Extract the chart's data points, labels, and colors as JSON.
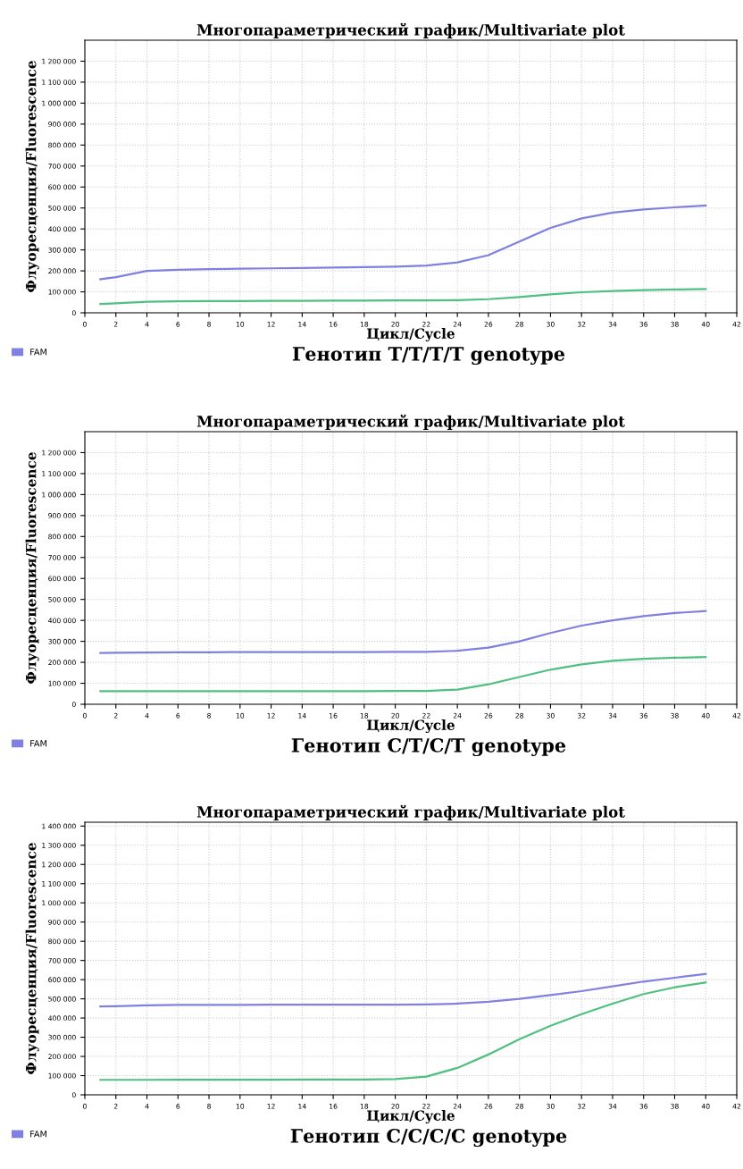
{
  "chart_data": [
    {
      "type": "line",
      "title": "Многопараметрический график/Multivariate plot",
      "xlabel": "Цикл/Cycle",
      "ylabel": "Флуоресценция/Fluorescence",
      "x": [
        1,
        2,
        4,
        6,
        8,
        10,
        12,
        14,
        16,
        18,
        20,
        22,
        24,
        26,
        28,
        30,
        32,
        34,
        36,
        38,
        40
      ],
      "series": [
        {
          "name": "FAM",
          "color": "#8080e0",
          "values": [
            160000,
            170000,
            200000,
            205000,
            208000,
            210000,
            212000,
            214000,
            216000,
            218000,
            220000,
            225000,
            240000,
            275000,
            340000,
            405000,
            450000,
            478000,
            493000,
            503000,
            512000
          ]
        },
        {
          "color": "#50c080",
          "values": [
            42000,
            45000,
            53000,
            55000,
            56000,
            56000,
            57000,
            57000,
            58000,
            58000,
            59000,
            59000,
            60000,
            65000,
            75000,
            88000,
            98000,
            104000,
            108000,
            111000,
            113000
          ]
        }
      ],
      "xlim": [
        0,
        42
      ],
      "xticks": [
        0,
        2,
        4,
        6,
        8,
        10,
        12,
        14,
        16,
        18,
        20,
        22,
        24,
        26,
        28,
        30,
        32,
        34,
        36,
        38,
        40,
        42
      ],
      "ylim": [
        0,
        1300000
      ],
      "yticks": [
        0,
        {
          "value": 100000,
          "label": "100 000"
        },
        {
          "value": 200000,
          "label": "200 000"
        },
        {
          "value": 300000,
          "label": "300 000"
        },
        {
          "value": 400000,
          "label": "400 000"
        },
        {
          "value": 500000,
          "label": "500 000"
        },
        {
          "value": 600000,
          "label": "600 000"
        },
        {
          "value": 700000,
          "label": "700 000"
        },
        {
          "value": 800000,
          "label": "800 000"
        },
        {
          "value": 900000,
          "label": "900 000"
        },
        {
          "value": 1000000,
          "label": "1 000 000"
        },
        {
          "value": 1100000,
          "label": "1 100 000"
        },
        {
          "value": 1200000,
          "label": "1 200 000"
        }
      ],
      "grid": true,
      "legend": "bottom left",
      "annotations": [
        "Генотип T/T/T/T genotype"
      ]
    },
    {
      "type": "line",
      "title": "Многопараметрический график/Multivariate plot",
      "xlabel": "Цикл/Cycle",
      "ylabel": "Флуоресценция/Fluorescence",
      "x": [
        1,
        2,
        4,
        6,
        8,
        10,
        12,
        14,
        16,
        18,
        20,
        22,
        24,
        26,
        28,
        30,
        32,
        34,
        36,
        38,
        40
      ],
      "series": [
        {
          "name": "FAM",
          "color": "#8080e0",
          "values": [
            245000,
            246000,
            247000,
            248000,
            248000,
            249000,
            249000,
            249000,
            249000,
            249000,
            250000,
            250000,
            255000,
            270000,
            300000,
            340000,
            375000,
            400000,
            420000,
            435000,
            445000
          ]
        },
        {
          "color": "#50c080",
          "values": [
            62000,
            62000,
            62000,
            62000,
            62000,
            62000,
            62000,
            62000,
            62000,
            62000,
            63000,
            63000,
            70000,
            95000,
            130000,
            165000,
            190000,
            207000,
            217000,
            222000,
            225000
          ]
        }
      ],
      "xlim": [
        0,
        42
      ],
      "xticks": [
        0,
        2,
        4,
        6,
        8,
        10,
        12,
        14,
        16,
        18,
        20,
        22,
        24,
        26,
        28,
        30,
        32,
        34,
        36,
        38,
        40,
        42
      ],
      "ylim": [
        0,
        1300000
      ],
      "yticks": [
        0,
        {
          "value": 100000,
          "label": "100 000"
        },
        {
          "value": 200000,
          "label": "200 000"
        },
        {
          "value": 300000,
          "label": "300 000"
        },
        {
          "value": 400000,
          "label": "400 000"
        },
        {
          "value": 500000,
          "label": "500 000"
        },
        {
          "value": 600000,
          "label": "600 000"
        },
        {
          "value": 700000,
          "label": "700 000"
        },
        {
          "value": 800000,
          "label": "800 000"
        },
        {
          "value": 900000,
          "label": "900 000"
        },
        {
          "value": 1000000,
          "label": "1 000 000"
        },
        {
          "value": 1100000,
          "label": "1 100 000"
        },
        {
          "value": 1200000,
          "label": "1 200 000"
        }
      ],
      "grid": true,
      "legend": "bottom left",
      "annotations": [
        "Генотип C/T/C/T genotype"
      ]
    },
    {
      "type": "line",
      "title": "Многопараметрический график/Multivariate plot",
      "xlabel": "Цикл/Cycle",
      "ylabel": "Флуоресценция/Fluorescence",
      "x": [
        1,
        2,
        4,
        6,
        8,
        10,
        12,
        14,
        16,
        18,
        20,
        22,
        24,
        26,
        28,
        30,
        32,
        34,
        36,
        38,
        40
      ],
      "series": [
        {
          "name": "FAM",
          "color": "#8080e0",
          "values": [
            460000,
            462000,
            466000,
            468000,
            469000,
            469000,
            470000,
            470000,
            470000,
            470000,
            470000,
            471000,
            475000,
            485000,
            500000,
            520000,
            540000,
            565000,
            590000,
            610000,
            630000
          ]
        },
        {
          "color": "#50c080",
          "values": [
            78000,
            78000,
            78000,
            79000,
            79000,
            79000,
            79000,
            80000,
            80000,
            80000,
            82000,
            95000,
            140000,
            210000,
            290000,
            360000,
            420000,
            475000,
            525000,
            560000,
            585000
          ]
        }
      ],
      "xlim": [
        0,
        42
      ],
      "xticks": [
        0,
        2,
        4,
        6,
        8,
        10,
        12,
        14,
        16,
        18,
        20,
        22,
        24,
        26,
        28,
        30,
        32,
        34,
        36,
        38,
        40,
        42
      ],
      "ylim": [
        0,
        1420000
      ],
      "yticks": [
        0,
        {
          "value": 100000,
          "label": "100 000"
        },
        {
          "value": 200000,
          "label": "200 000"
        },
        {
          "value": 300000,
          "label": "300 000"
        },
        {
          "value": 400000,
          "label": "400 000"
        },
        {
          "value": 500000,
          "label": "500 000"
        },
        {
          "value": 600000,
          "label": "600 000"
        },
        {
          "value": 700000,
          "label": "700 000"
        },
        {
          "value": 800000,
          "label": "800 000"
        },
        {
          "value": 900000,
          "label": "900 000"
        },
        {
          "value": 1000000,
          "label": "1 000 000"
        },
        {
          "value": 1100000,
          "label": "1 100 000"
        },
        {
          "value": 1200000,
          "label": "1 200 000"
        },
        {
          "value": 1300000,
          "label": "1 300 000"
        },
        {
          "value": 1400000,
          "label": "1 400 000"
        }
      ],
      "grid": true,
      "legend": "bottom left",
      "annotations": [
        "Генотип C/C/C/C genotype"
      ]
    }
  ]
}
